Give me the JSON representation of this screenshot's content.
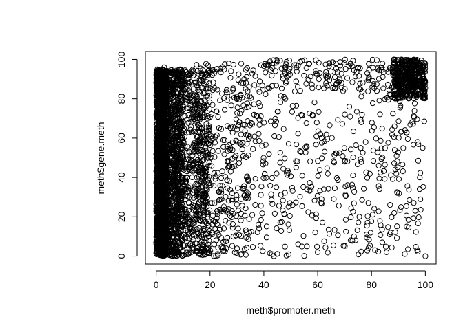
{
  "chart_data": {
    "type": "scatter",
    "title": "",
    "xlabel": "meth$promoter.meth",
    "ylabel": "meth$gene.meth",
    "xlim": [
      -4,
      104
    ],
    "ylim": [
      -4,
      104
    ],
    "x_ticks": [
      0,
      20,
      40,
      60,
      80,
      100
    ],
    "y_ticks": [
      0,
      20,
      40,
      60,
      80,
      100
    ],
    "grid": false,
    "legend": "none",
    "marker": "open-circle",
    "marker_color": "#000000",
    "clusters": [
      {
        "x_range": [
          0,
          4
        ],
        "y_range": [
          0,
          95
        ],
        "count": 1500
      },
      {
        "x_range": [
          0,
          10
        ],
        "y_range": [
          0,
          95
        ],
        "count": 900
      },
      {
        "x_range": [
          5,
          20
        ],
        "y_range": [
          0,
          95
        ],
        "count": 700
      },
      {
        "x_range": [
          15,
          35
        ],
        "y_range": [
          0,
          98
        ],
        "count": 350
      },
      {
        "x_range": [
          35,
          100
        ],
        "y_range": [
          0,
          100
        ],
        "count": 450
      },
      {
        "x_range": [
          88,
          100
        ],
        "y_range": [
          80,
          100
        ],
        "count": 400
      },
      {
        "x_range": [
          40,
          100
        ],
        "y_range": [
          85,
          100
        ],
        "count": 150
      }
    ],
    "points": [
      {
        "x": 100,
        "y": 0
      },
      {
        "x": 97,
        "y": 3
      },
      {
        "x": 60,
        "y": 2
      },
      {
        "x": 84,
        "y": 7
      },
      {
        "x": 56,
        "y": 5
      },
      {
        "x": 45,
        "y": 99
      },
      {
        "x": 27,
        "y": 98
      },
      {
        "x": 3,
        "y": 96
      },
      {
        "x": 4,
        "y": 94
      },
      {
        "x": 66,
        "y": 29
      },
      {
        "x": 70,
        "y": 48
      },
      {
        "x": 76,
        "y": 55
      },
      {
        "x": 82,
        "y": 84
      },
      {
        "x": 93,
        "y": 93
      },
      {
        "x": 99,
        "y": 55
      },
      {
        "x": 52,
        "y": 45
      },
      {
        "x": 61,
        "y": 62
      },
      {
        "x": 38,
        "y": 16
      },
      {
        "x": 48,
        "y": 80
      }
    ]
  }
}
